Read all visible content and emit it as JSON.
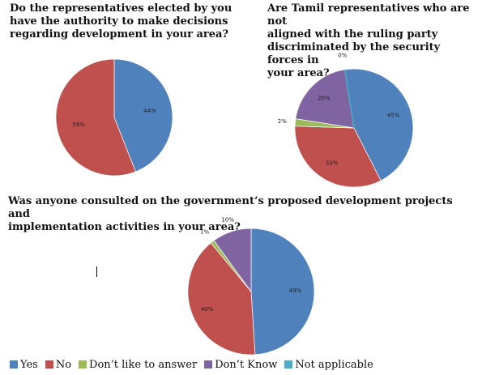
{
  "colors": {
    "yes": "#4f81bd",
    "no": "#c0504d",
    "dont_like": "#9bbb59",
    "dont_know": "#8064a2",
    "not_applicable": "#4bacc6"
  },
  "legend": [
    {
      "label": "Yes",
      "color": "#4f81bd"
    },
    {
      "label": "No",
      "color": "#c0504d"
    },
    {
      "label": "Don’t like to answer",
      "color": "#9bbb59"
    },
    {
      "label": "Don’t Know",
      "color": "#8064a2"
    },
    {
      "label": "Not applicable",
      "color": "#4bacc6"
    }
  ],
  "chart_data": [
    {
      "type": "pie",
      "title": "Do the representatives elected by you\nhave the authority to make decisions\nregarding development in your area?",
      "slices": [
        {
          "category": "Yes",
          "value": 44,
          "label": "44%",
          "color": "#4f81bd"
        },
        {
          "category": "No",
          "value": 56,
          "label": "56%",
          "color": "#c0504d"
        }
      ]
    },
    {
      "type": "pie",
      "title": "Are Tamil representatives who are not\naligned with the ruling party\ndiscriminated by the security forces in\nyour area?",
      "slices": [
        {
          "category": "Yes",
          "value": 45,
          "label": "45%",
          "color": "#4f81bd"
        },
        {
          "category": "No",
          "value": 33,
          "label": "33%",
          "color": "#c0504d"
        },
        {
          "category": "Don’t like to answer",
          "value": 2,
          "label": "2%",
          "color": "#9bbb59"
        },
        {
          "category": "Don’t Know",
          "value": 20,
          "label": "20%",
          "color": "#8064a2"
        },
        {
          "category": "Not applicable",
          "value": 0,
          "label": "0%",
          "color": "#4bacc6"
        }
      ]
    },
    {
      "type": "pie",
      "title": "Was  anyone consulted on the government’s proposed development projects and\nimplementation activities in your area?",
      "slices": [
        {
          "category": "Yes",
          "value": 49,
          "label": "49%",
          "color": "#4f81bd"
        },
        {
          "category": "No",
          "value": 40,
          "label": "40%",
          "color": "#c0504d"
        },
        {
          "category": "Don’t like to answer",
          "value": 1,
          "label": "1%",
          "color": "#9bbb59"
        },
        {
          "category": "Don’t Know",
          "value": 10,
          "label": "10%",
          "color": "#8064a2"
        }
      ],
      "legend_position": "bottom"
    }
  ]
}
